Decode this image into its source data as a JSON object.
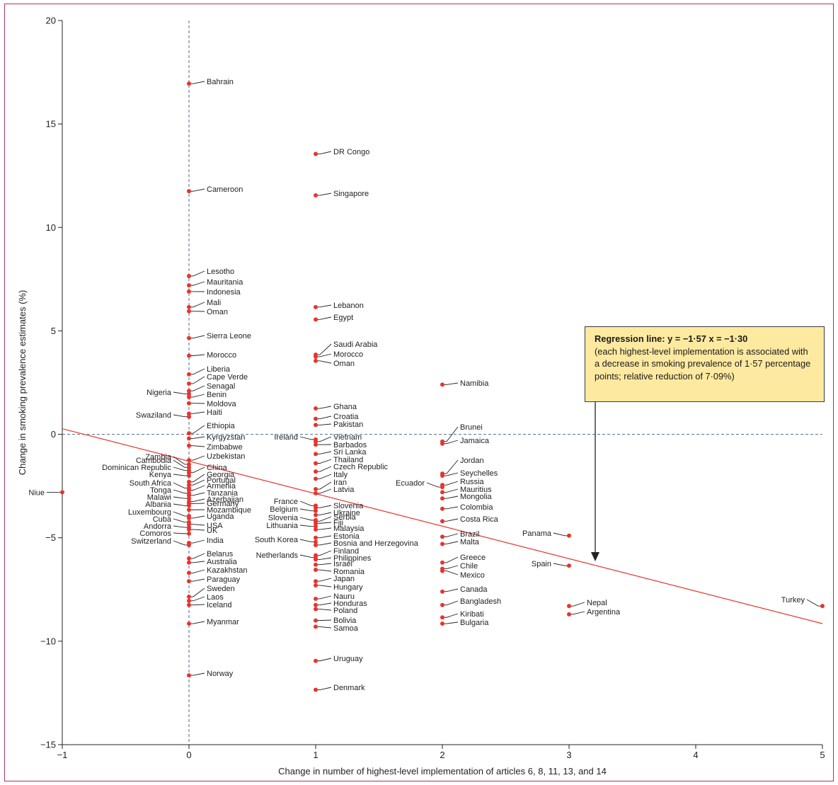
{
  "chart_data": {
    "type": "scatter",
    "title": "",
    "xlabel": "Change in number of highest-level implementation of articles 6, 8, 11, 13, and 14",
    "ylabel": "Change in smoking prevalence estimates (%)",
    "xlim": [
      -1,
      5
    ],
    "ylim": [
      -15,
      20
    ],
    "x_ticks": [
      "−1",
      "0",
      "1",
      "2",
      "3",
      "4",
      "5"
    ],
    "y_ticks": [
      "−15",
      "−10",
      "−5",
      "0",
      "5",
      "10",
      "15",
      "20"
    ],
    "reference_lines": {
      "x": 0,
      "y": 0,
      "style": "dashed"
    },
    "grid": false,
    "regression": {
      "slope": -1.57,
      "intercept": -1.3,
      "title": "Regression line: y = −1·57 x = −1·30",
      "description": "(each highest-level implementation is associated with a decrease in smoking prevalence of 1·57 percentage points; relative reduction of 7·09%)"
    },
    "point_color": "#e8342e",
    "line_color": "#e8342e",
    "points": [
      {
        "label": "Niue",
        "x": -1,
        "y": -2.8
      },
      {
        "label": "Bahrain",
        "x": 0,
        "y": 16.95
      },
      {
        "label": "Cameroon",
        "x": 0,
        "y": 11.75
      },
      {
        "label": "Lesotho",
        "x": 0,
        "y": 7.65
      },
      {
        "label": "Mauritania",
        "x": 0,
        "y": 7.2
      },
      {
        "label": "Indonesia",
        "x": 0,
        "y": 6.9
      },
      {
        "label": "Mali",
        "x": 0,
        "y": 6.15
      },
      {
        "label": "Oman",
        "x": 0,
        "y": 5.95
      },
      {
        "label": "Sierra Leone",
        "x": 0,
        "y": 4.65
      },
      {
        "label": "Morocco",
        "x": 0,
        "y": 3.8
      },
      {
        "label": "Liberia",
        "x": 0,
        "y": 2.9
      },
      {
        "label": "Cape Verde",
        "x": 0,
        "y": 2.45
      },
      {
        "label": "Senagal",
        "x": 0,
        "y": 2.1
      },
      {
        "label": "Nigeria",
        "x": 0,
        "y": 1.95
      },
      {
        "label": "Benin",
        "x": 0,
        "y": 1.8
      },
      {
        "label": "Moldova",
        "x": 0,
        "y": 1.5
      },
      {
        "label": "Haiti",
        "x": 0,
        "y": 1.0
      },
      {
        "label": "Swaziland",
        "x": 0,
        "y": 0.85
      },
      {
        "label": "Ethiopia",
        "x": 0,
        "y": 0.05
      },
      {
        "label": "Kyrgyzstan",
        "x": 0,
        "y": -0.2
      },
      {
        "label": "Zimbabwe",
        "x": 0,
        "y": -0.55
      },
      {
        "label": "Uzbekistan",
        "x": 0,
        "y": -1.25
      },
      {
        "label": "Zambia",
        "x": 0,
        "y": -1.45
      },
      {
        "label": "Cambodia",
        "x": 0,
        "y": -1.6
      },
      {
        "label": "Dominican Republic",
        "x": 0,
        "y": -1.75
      },
      {
        "label": "China",
        "x": 0,
        "y": -1.85
      },
      {
        "label": "Kenya",
        "x": 0,
        "y": -2.0
      },
      {
        "label": "Georgia",
        "x": 0,
        "y": -2.3
      },
      {
        "label": "Portugal",
        "x": 0,
        "y": -2.45
      },
      {
        "label": "South Africa",
        "x": 0,
        "y": -2.6
      },
      {
        "label": "Armenia",
        "x": 0,
        "y": -2.7
      },
      {
        "label": "Tonga",
        "x": 0,
        "y": -2.85
      },
      {
        "label": "Tanzania",
        "x": 0,
        "y": -2.95
      },
      {
        "label": "Malawi",
        "x": 0,
        "y": -3.1
      },
      {
        "label": "Azerbaijan",
        "x": 0,
        "y": -3.25
      },
      {
        "label": "Germany",
        "x": 0,
        "y": -3.35
      },
      {
        "label": "Albania",
        "x": 0,
        "y": -3.45
      },
      {
        "label": "Mozambique",
        "x": 0,
        "y": -3.65
      },
      {
        "label": "Luxembourg",
        "x": 0,
        "y": -3.95
      },
      {
        "label": "Uganda",
        "x": 0,
        "y": -4.05
      },
      {
        "label": "Cuba",
        "x": 0,
        "y": -4.25
      },
      {
        "label": "USA",
        "x": 0,
        "y": -4.35
      },
      {
        "label": "Andorra",
        "x": 0,
        "y": -4.5
      },
      {
        "label": "UK",
        "x": 0,
        "y": -4.6
      },
      {
        "label": "Comoros",
        "x": 0,
        "y": -4.8
      },
      {
        "label": "India",
        "x": 0,
        "y": -5.25
      },
      {
        "label": "Switzerland",
        "x": 0,
        "y": -5.35
      },
      {
        "label": "Belarus",
        "x": 0,
        "y": -6.0
      },
      {
        "label": "Australia",
        "x": 0,
        "y": -6.2
      },
      {
        "label": "Kazakhstan",
        "x": 0,
        "y": -6.7
      },
      {
        "label": "Paraguay",
        "x": 0,
        "y": -7.1
      },
      {
        "label": "Sweden",
        "x": 0,
        "y": -7.85
      },
      {
        "label": "Laos",
        "x": 0,
        "y": -8.05
      },
      {
        "label": "Iceland",
        "x": 0,
        "y": -8.25
      },
      {
        "label": "Myanmar",
        "x": 0,
        "y": -9.15
      },
      {
        "label": "Norway",
        "x": 0,
        "y": -11.65
      },
      {
        "label": "DR Congo",
        "x": 1,
        "y": 13.55
      },
      {
        "label": "Singapore",
        "x": 1,
        "y": 11.55
      },
      {
        "label": "Lebanon",
        "x": 1,
        "y": 6.15
      },
      {
        "label": "Egypt",
        "x": 1,
        "y": 5.55
      },
      {
        "label": "Saudi Arabia",
        "x": 1,
        "y": 3.85
      },
      {
        "label": "Morocco",
        "x": 1,
        "y": 3.75
      },
      {
        "label": "Oman",
        "x": 1,
        "y": 3.55
      },
      {
        "label": "Ghana",
        "x": 1,
        "y": 1.25
      },
      {
        "label": "Croatia",
        "x": 1,
        "y": 0.75
      },
      {
        "label": "Pakistan",
        "x": 1,
        "y": 0.45
      },
      {
        "label": "Ireland",
        "x": 1,
        "y": -0.25
      },
      {
        "label": "Vietnam",
        "x": 1,
        "y": -0.35
      },
      {
        "label": "Barbados",
        "x": 1,
        "y": -0.5
      },
      {
        "label": "Sri Lanka",
        "x": 1,
        "y": -0.95
      },
      {
        "label": "Thailand",
        "x": 1,
        "y": -1.4
      },
      {
        "label": "Czech Republic",
        "x": 1,
        "y": -1.8
      },
      {
        "label": "Italy",
        "x": 1,
        "y": -2.15
      },
      {
        "label": "Iran",
        "x": 1,
        "y": -2.65
      },
      {
        "label": "Latvia",
        "x": 1,
        "y": -2.85
      },
      {
        "label": "France",
        "x": 1,
        "y": -3.45
      },
      {
        "label": "Slovenia",
        "x": 1,
        "y": -3.55
      },
      {
        "label": "Belgium",
        "x": 1,
        "y": -3.7
      },
      {
        "label": "Ukraine",
        "x": 1,
        "y": -3.9
      },
      {
        "label": "Slovenia",
        "x": 1,
        "y": -4.15
      },
      {
        "label": "Serbia",
        "x": 1,
        "y": -4.2
      },
      {
        "label": "Fiji",
        "x": 1,
        "y": -4.3
      },
      {
        "label": "Lithuania",
        "x": 1,
        "y": -4.45
      },
      {
        "label": "Malaysia",
        "x": 1,
        "y": -4.6
      },
      {
        "label": "Estonia",
        "x": 1,
        "y": -5.0
      },
      {
        "label": "South Korea",
        "x": 1,
        "y": -5.2
      },
      {
        "label": "Bosnia and Herzegovina",
        "x": 1,
        "y": -5.35
      },
      {
        "label": "Finland",
        "x": 1,
        "y": -5.85
      },
      {
        "label": "Netherlands",
        "x": 1,
        "y": -5.95
      },
      {
        "label": "Philippines",
        "x": 1,
        "y": -6.05
      },
      {
        "label": "Israel",
        "x": 1,
        "y": -6.3
      },
      {
        "label": "Romania",
        "x": 1,
        "y": -6.55
      },
      {
        "label": "Japan",
        "x": 1,
        "y": -7.1
      },
      {
        "label": "Hungary",
        "x": 1,
        "y": -7.3
      },
      {
        "label": "Nauru",
        "x": 1,
        "y": -7.95
      },
      {
        "label": "Honduras",
        "x": 1,
        "y": -8.25
      },
      {
        "label": "Poland",
        "x": 1,
        "y": -8.45
      },
      {
        "label": "Bolivia",
        "x": 1,
        "y": -9.0
      },
      {
        "label": "Samoa",
        "x": 1,
        "y": -9.3
      },
      {
        "label": "Uruguay",
        "x": 1,
        "y": -10.95
      },
      {
        "label": "Denmark",
        "x": 1,
        "y": -12.35
      },
      {
        "label": "Namibia",
        "x": 2,
        "y": 2.4
      },
      {
        "label": "Brunei",
        "x": 2,
        "y": -0.35
      },
      {
        "label": "Jamaica",
        "x": 2,
        "y": -0.45
      },
      {
        "label": "Jordan",
        "x": 2,
        "y": -1.9
      },
      {
        "label": "Seychelles",
        "x": 2,
        "y": -2.0
      },
      {
        "label": "Russia",
        "x": 2,
        "y": -2.45
      },
      {
        "label": "Ecuador",
        "x": 2,
        "y": -2.55
      },
      {
        "label": "Mauritius",
        "x": 2,
        "y": -2.8
      },
      {
        "label": "Mongolia",
        "x": 2,
        "y": -3.1
      },
      {
        "label": "Colombia",
        "x": 2,
        "y": -3.6
      },
      {
        "label": "Costa Rica",
        "x": 2,
        "y": -4.2
      },
      {
        "label": "Brazil",
        "x": 2,
        "y": -4.95
      },
      {
        "label": "Malta",
        "x": 2,
        "y": -5.3
      },
      {
        "label": "Greece",
        "x": 2,
        "y": -6.2
      },
      {
        "label": "Chile",
        "x": 2,
        "y": -6.5
      },
      {
        "label": "Mexico",
        "x": 2,
        "y": -6.6
      },
      {
        "label": "Canada",
        "x": 2,
        "y": -7.6
      },
      {
        "label": "Bangladesh",
        "x": 2,
        "y": -8.25
      },
      {
        "label": "Kiribati",
        "x": 2,
        "y": -8.85
      },
      {
        "label": "Bulgaria",
        "x": 2,
        "y": -9.15
      },
      {
        "label": "Panama",
        "x": 3,
        "y": -4.9
      },
      {
        "label": "Spain",
        "x": 3,
        "y": -6.35
      },
      {
        "label": "Nepal",
        "x": 3,
        "y": -8.3
      },
      {
        "label": "Argentina",
        "x": 3,
        "y": -8.7
      },
      {
        "label": "Turkey",
        "x": 5,
        "y": -8.3
      }
    ]
  }
}
